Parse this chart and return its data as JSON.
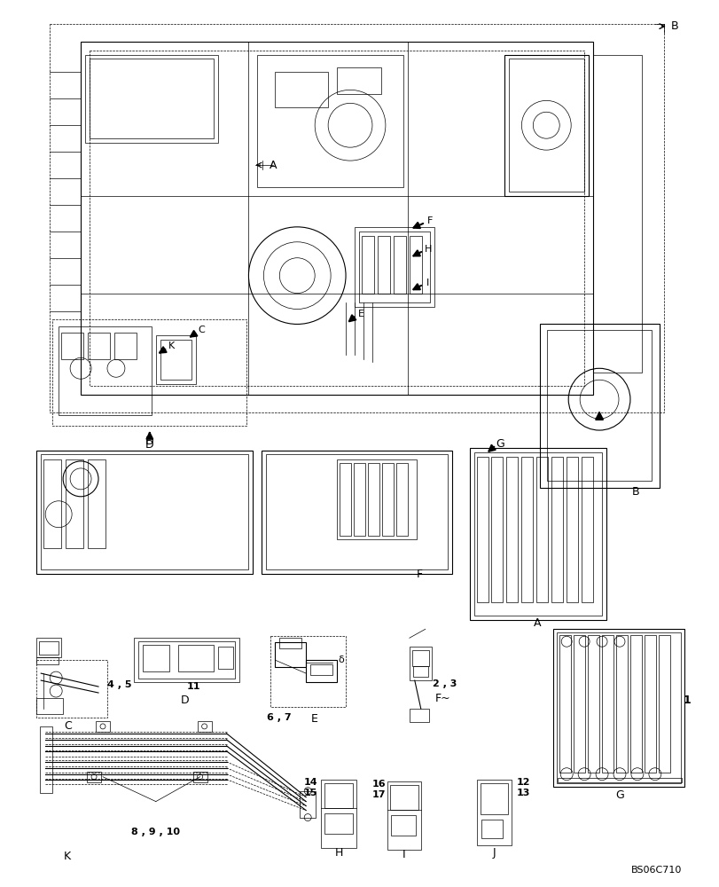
{
  "bg_color": "#ffffff",
  "line_color": "#000000",
  "watermark": "BS06C710",
  "figsize": [
    8.12,
    10.0
  ],
  "dpi": 100,
  "labels": {
    "B_top": "B",
    "A_main": "A",
    "H_lbl": "H",
    "I_lbl": "I",
    "E_lbl": "E",
    "C_lbl": "C",
    "K_lbl": "K",
    "D_lbl": "D",
    "B_right": "B",
    "G_lbl": "G",
    "A_bottom": "A",
    "num_1": "1",
    "num_2_3": "2 , 3",
    "num_4_5": "4 , 5",
    "num_6_7": "6 , 7",
    "num_8_9_10": "8 , 9 , 10",
    "num_11": "11",
    "num_12": "12",
    "num_13": "13",
    "num_14": "14",
    "num_15": "15",
    "num_16": "16",
    "num_17": "17",
    "F_tilde": "F~",
    "delta": "δ"
  }
}
